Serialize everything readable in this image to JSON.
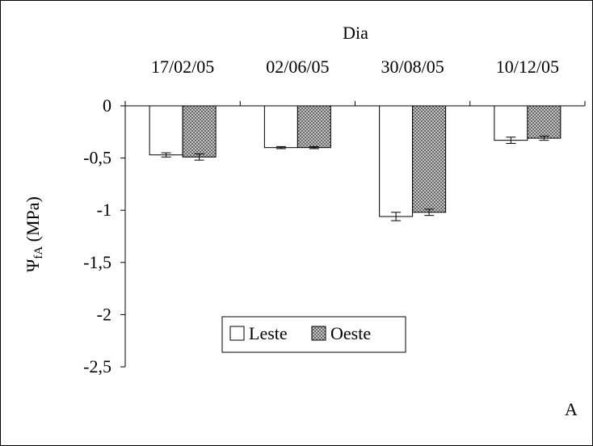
{
  "chart_data": {
    "type": "bar",
    "title": "Dia",
    "ylabel_main": "Ψ",
    "ylabel_sub": "fA",
    "ylabel_unit": " (MPa)",
    "categories": [
      "17/02/05",
      "02/06/05",
      "30/08/05",
      "10/12/05"
    ],
    "series": [
      {
        "name": "Leste",
        "values": [
          -0.47,
          -0.4,
          -1.06,
          -0.33
        ],
        "errors": [
          0.02,
          0.01,
          0.04,
          0.03
        ],
        "fill": "white"
      },
      {
        "name": "Oeste",
        "values": [
          -0.49,
          -0.4,
          -1.02,
          -0.31
        ],
        "errors": [
          0.03,
          0.01,
          0.03,
          0.02
        ],
        "fill": "crosshatch"
      }
    ],
    "ylim": [
      -2.5,
      0
    ],
    "yticks": [
      0,
      -0.5,
      -1,
      -1.5,
      -2,
      -2.5
    ],
    "ytick_labels": [
      "0",
      "-0,5",
      "-1",
      "-1,5",
      "-2",
      "-2,5"
    ],
    "x_axis_position": "top",
    "legend_position": "inside-lower-left",
    "grid": false,
    "panel_letter": "A",
    "colors": {
      "axis": "#000000",
      "bar_stroke": "#000000",
      "hatch_dark": "#444444",
      "hatch_light": "#d9d9d9"
    }
  }
}
